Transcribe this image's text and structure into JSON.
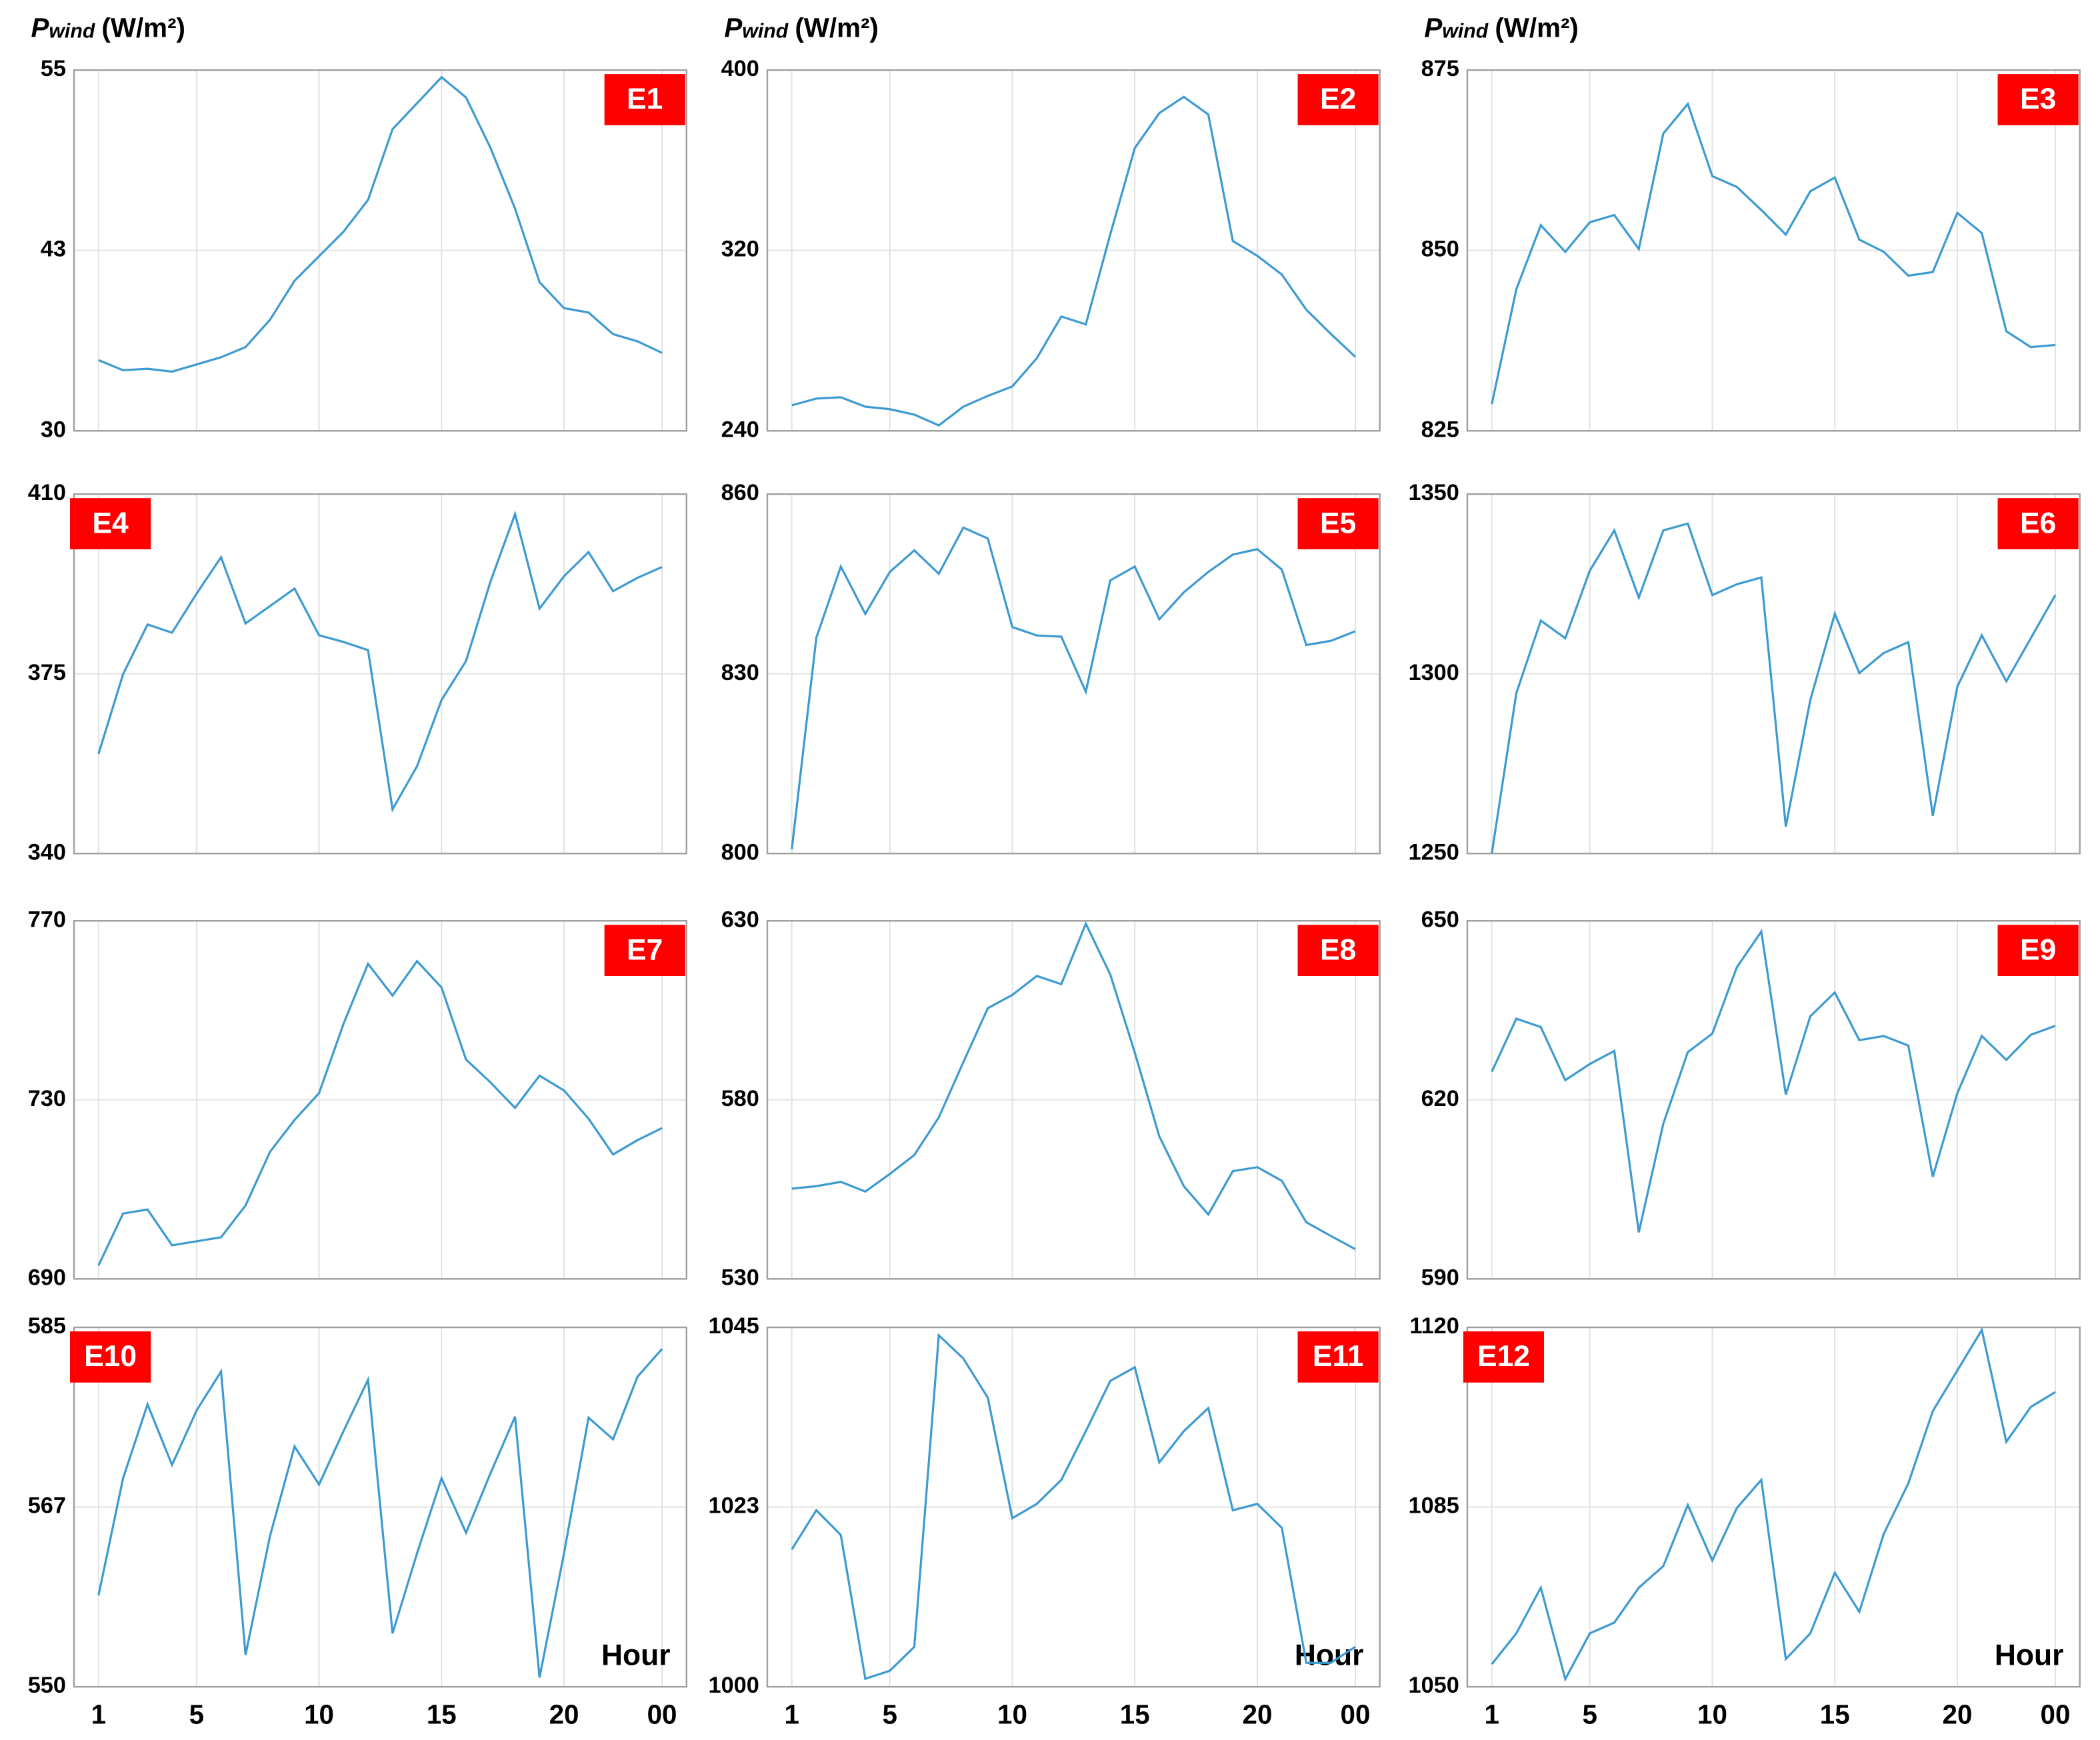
{
  "chart_data": [
    {
      "type": "line",
      "label": "E1",
      "label_corner": "upper right",
      "ylabel": {
        "symbol": "P",
        "subscript": "wind",
        "unit": "(W/m²)"
      },
      "xtick_labels": false,
      "grid": true,
      "color": "#3d9ad1",
      "x": [
        1,
        2,
        3,
        4,
        5,
        6,
        7,
        8,
        9,
        10,
        11,
        12,
        13,
        14,
        15,
        16,
        17,
        18,
        19,
        20,
        21,
        22,
        23,
        24
      ],
      "values": [
        34.9,
        34.2,
        34.3,
        34.1,
        34.6,
        35.1,
        35.8,
        37.7,
        40.4,
        42.1,
        43.8,
        46.0,
        50.9,
        52.7,
        54.5,
        53.1,
        49.6,
        45.4,
        40.3,
        38.5,
        38.2,
        36.7,
        36.2,
        35.4
      ],
      "xlim": [
        0,
        25
      ],
      "xticks": [
        1,
        5,
        10,
        15,
        20,
        {
          "value": 24,
          "label": "00"
        }
      ],
      "ylim": [
        30,
        55
      ],
      "yticks": [
        30,
        {
          "value": 42.5,
          "label": "43"
        },
        55
      ]
    },
    {
      "type": "line",
      "label": "E2",
      "label_corner": "upper right",
      "ylabel": {
        "symbol": "P",
        "subscript": "wind",
        "unit": "(W/m²)"
      },
      "xtick_labels": false,
      "grid": true,
      "color": "#3d9ad1",
      "x": [
        1,
        2,
        3,
        4,
        5,
        6,
        7,
        8,
        9,
        10,
        11,
        12,
        13,
        14,
        15,
        16,
        17,
        18,
        19,
        20,
        21,
        22,
        23,
        24
      ],
      "values": [
        251.3,
        254.3,
        254.9,
        250.7,
        249.6,
        247.2,
        242.4,
        250.7,
        255.5,
        259.7,
        272.2,
        290.7,
        287.2,
        327.2,
        365.4,
        380.9,
        388.1,
        380.3,
        324.2,
        317.6,
        309.3,
        293.7,
        283.0,
        272.8
      ],
      "xlim": [
        0,
        25
      ],
      "xticks": [
        1,
        5,
        10,
        15,
        20,
        {
          "value": 24,
          "label": "00"
        }
      ],
      "ylim": [
        240,
        400
      ],
      "yticks": [
        240,
        320,
        400
      ]
    },
    {
      "type": "line",
      "label": "E3",
      "label_corner": "upper right",
      "ylabel": {
        "symbol": "P",
        "subscript": "wind",
        "unit": "(W/m²)"
      },
      "xtick_labels": false,
      "grid": true,
      "color": "#3d9ad1",
      "x": [
        1,
        2,
        3,
        4,
        5,
        6,
        7,
        8,
        9,
        10,
        11,
        12,
        13,
        14,
        15,
        16,
        17,
        18,
        19,
        20,
        21,
        22,
        23,
        24
      ],
      "values": [
        828.7,
        844.6,
        853.5,
        849.8,
        853.9,
        854.9,
        850.2,
        866.2,
        870.3,
        860.3,
        858.8,
        855.6,
        852.2,
        858.2,
        860.1,
        851.5,
        849.8,
        846.5,
        847.0,
        855.2,
        852.4,
        838.8,
        836.6,
        836.9
      ],
      "xlim": [
        0,
        25
      ],
      "xticks": [
        1,
        5,
        10,
        15,
        20,
        {
          "value": 24,
          "label": "00"
        }
      ],
      "ylim": [
        825,
        875
      ],
      "yticks": [
        825,
        850,
        875
      ]
    },
    {
      "type": "line",
      "label": "E4",
      "label_corner": "upper left",
      "xtick_labels": false,
      "grid": true,
      "color": "#3d9ad1",
      "x": [
        1,
        2,
        3,
        4,
        5,
        6,
        7,
        8,
        9,
        10,
        11,
        12,
        13,
        14,
        15,
        16,
        17,
        18,
        19,
        20,
        21,
        22,
        23,
        24
      ],
      "values": [
        359.4,
        374.9,
        384.6,
        383.0,
        390.6,
        397.7,
        384.8,
        388.2,
        391.6,
        382.5,
        381.2,
        379.6,
        348.6,
        357.0,
        369.9,
        377.5,
        393.0,
        406.1,
        387.7,
        394.0,
        398.7,
        391.1,
        393.7,
        395.8
      ],
      "xlim": [
        0,
        25
      ],
      "xticks": [
        1,
        5,
        10,
        15,
        20,
        {
          "value": 24,
          "label": "00"
        }
      ],
      "ylim": [
        340,
        410
      ],
      "yticks": [
        340,
        375,
        410
      ]
    },
    {
      "type": "line",
      "label": "E5",
      "label_corner": "upper right",
      "xtick_labels": false,
      "grid": true,
      "color": "#3d9ad1",
      "x": [
        1,
        2,
        3,
        4,
        5,
        6,
        7,
        8,
        9,
        10,
        11,
        12,
        13,
        14,
        15,
        16,
        17,
        18,
        19,
        20,
        21,
        22,
        23,
        24
      ],
      "values": [
        800.7,
        836.0,
        847.9,
        840.0,
        847.0,
        850.6,
        846.7,
        854.4,
        852.6,
        837.8,
        836.4,
        836.2,
        827.0,
        845.6,
        847.9,
        839.1,
        843.6,
        847.0,
        849.9,
        850.8,
        847.4,
        834.8,
        835.5,
        837.1
      ],
      "xlim": [
        0,
        25
      ],
      "xticks": [
        1,
        5,
        10,
        15,
        20,
        {
          "value": 24,
          "label": "00"
        }
      ],
      "ylim": [
        800,
        860
      ],
      "yticks": [
        800,
        830,
        860
      ]
    },
    {
      "type": "line",
      "label": "E6",
      "label_corner": "upper right",
      "xtick_labels": false,
      "grid": true,
      "color": "#3d9ad1",
      "x": [
        1,
        2,
        3,
        4,
        5,
        6,
        7,
        8,
        9,
        10,
        11,
        12,
        13,
        14,
        15,
        16,
        17,
        18,
        19,
        20,
        21,
        22,
        23,
        24
      ],
      "values": [
        1250.0,
        1294.6,
        1314.8,
        1309.9,
        1328.7,
        1339.9,
        1321.2,
        1339.9,
        1341.8,
        1321.9,
        1324.9,
        1326.8,
        1257.5,
        1292.7,
        1316.7,
        1300.2,
        1305.8,
        1308.8,
        1260.5,
        1296.4,
        1310.7,
        1297.9,
        1309.9,
        1321.9
      ],
      "xlim": [
        0,
        25
      ],
      "xticks": [
        1,
        5,
        10,
        15,
        20,
        {
          "value": 24,
          "label": "00"
        }
      ],
      "ylim": [
        1250,
        1350
      ],
      "yticks": [
        1250,
        1300,
        1350
      ]
    },
    {
      "type": "line",
      "label": "E7",
      "label_corner": "upper right",
      "xtick_labels": false,
      "grid": true,
      "color": "#3d9ad1",
      "x": [
        1,
        2,
        3,
        4,
        5,
        6,
        7,
        8,
        9,
        10,
        11,
        12,
        13,
        14,
        15,
        16,
        17,
        18,
        19,
        20,
        21,
        22,
        23,
        24
      ],
      "values": [
        693.0,
        704.6,
        705.5,
        697.5,
        698.4,
        699.3,
        706.4,
        718.4,
        725.5,
        731.5,
        747.0,
        760.4,
        753.3,
        761.0,
        755.1,
        739.0,
        733.9,
        728.2,
        735.4,
        732.1,
        725.8,
        717.8,
        721.0,
        723.7
      ],
      "xlim": [
        0,
        25
      ],
      "xticks": [
        1,
        5,
        10,
        15,
        20,
        {
          "value": 24,
          "label": "00"
        }
      ],
      "ylim": [
        690,
        770
      ],
      "yticks": [
        690,
        730,
        770
      ]
    },
    {
      "type": "line",
      "label": "E8",
      "label_corner": "upper right",
      "xtick_labels": false,
      "grid": true,
      "color": "#3d9ad1",
      "x": [
        1,
        2,
        3,
        4,
        5,
        6,
        7,
        8,
        9,
        10,
        11,
        12,
        13,
        14,
        15,
        16,
        17,
        18,
        19,
        20,
        21,
        22,
        23,
        24
      ],
      "values": [
        555.2,
        555.9,
        557.1,
        554.4,
        559.3,
        564.6,
        575.1,
        590.5,
        605.6,
        609.3,
        614.6,
        612.3,
        629.2,
        615.0,
        593.2,
        569.8,
        555.9,
        548.0,
        560.1,
        561.2,
        557.4,
        545.8,
        542.0,
        538.3
      ],
      "xlim": [
        0,
        25
      ],
      "xticks": [
        1,
        5,
        10,
        15,
        20,
        {
          "value": 24,
          "label": "00"
        }
      ],
      "ylim": [
        530,
        630
      ],
      "yticks": [
        530,
        580,
        630
      ]
    },
    {
      "type": "line",
      "label": "E9",
      "label_corner": "upper right",
      "xtick_labels": false,
      "grid": true,
      "color": "#3d9ad1",
      "x": [
        1,
        2,
        3,
        4,
        5,
        6,
        7,
        8,
        9,
        10,
        11,
        12,
        13,
        14,
        15,
        16,
        17,
        18,
        19,
        20,
        21,
        22,
        23,
        24
      ],
      "values": [
        624.7,
        633.6,
        632.2,
        623.3,
        626.0,
        628.2,
        597.8,
        616.0,
        628.0,
        631.1,
        642.2,
        648.2,
        620.9,
        634.0,
        638.0,
        630.0,
        630.7,
        629.1,
        607.1,
        621.1,
        630.7,
        626.7,
        630.9,
        632.4
      ],
      "xlim": [
        0,
        25
      ],
      "xticks": [
        1,
        5,
        10,
        15,
        20,
        {
          "value": 24,
          "label": "00"
        }
      ],
      "ylim": [
        590,
        650
      ],
      "yticks": [
        590,
        620,
        650
      ]
    },
    {
      "type": "line",
      "label": "E10",
      "label_corner": "upper left",
      "xlabel": "Hour",
      "xtick_labels": true,
      "grid": true,
      "color": "#3d9ad1",
      "x": [
        1,
        2,
        3,
        4,
        5,
        6,
        7,
        8,
        9,
        10,
        11,
        12,
        13,
        14,
        15,
        16,
        17,
        18,
        19,
        20,
        21,
        22,
        23,
        24
      ],
      "values": [
        558.9,
        570.3,
        577.5,
        571.6,
        576.9,
        580.7,
        553.1,
        564.7,
        573.4,
        569.7,
        574.9,
        579.9,
        555.2,
        563.0,
        570.3,
        565.0,
        570.8,
        576.3,
        550.9,
        563.0,
        576.2,
        574.1,
        580.2,
        582.9
      ],
      "xlim": [
        0,
        25
      ],
      "xticks": [
        1,
        5,
        10,
        15,
        20,
        {
          "value": 24,
          "label": "00"
        }
      ],
      "ylim": [
        550,
        585
      ],
      "yticks": [
        550,
        {
          "value": 567.5,
          "label": "567"
        },
        585
      ]
    },
    {
      "type": "line",
      "label": "E11",
      "label_corner": "upper right",
      "xlabel": "Hour",
      "xtick_labels": true,
      "grid": true,
      "color": "#3d9ad1",
      "x": [
        1,
        2,
        3,
        4,
        5,
        6,
        7,
        8,
        9,
        10,
        11,
        12,
        13,
        14,
        15,
        16,
        17,
        18,
        19,
        20,
        21,
        22,
        23,
        24
      ],
      "values": [
        1017.2,
        1022.1,
        1019.0,
        1001.0,
        1002.0,
        1005.0,
        1044.0,
        1041.1,
        1036.2,
        1021.1,
        1022.9,
        1025.9,
        1032.0,
        1038.3,
        1040.0,
        1028.1,
        1032.0,
        1034.9,
        1022.1,
        1022.9,
        1019.9,
        1003.0,
        1003.0,
        1005.0
      ],
      "xlim": [
        0,
        25
      ],
      "xticks": [
        1,
        5,
        10,
        15,
        20,
        {
          "value": 24,
          "label": "00"
        }
      ],
      "ylim": [
        1000,
        1045
      ],
      "yticks": [
        1000,
        {
          "value": 1022.5,
          "label": "1023"
        },
        1045
      ]
    },
    {
      "type": "line",
      "label": "E12",
      "label_corner": "upper left",
      "xlabel": "Hour",
      "xtick_labels": true,
      "grid": true,
      "color": "#3d9ad1",
      "x": [
        1,
        2,
        3,
        4,
        5,
        6,
        7,
        8,
        9,
        10,
        11,
        12,
        13,
        14,
        15,
        16,
        17,
        18,
        19,
        20,
        21,
        22,
        23,
        24
      ],
      "values": [
        1054.4,
        1060.4,
        1069.3,
        1051.5,
        1060.4,
        1062.5,
        1069.3,
        1073.5,
        1085.4,
        1074.6,
        1084.8,
        1090.3,
        1055.4,
        1060.4,
        1072.2,
        1064.6,
        1079.8,
        1089.6,
        1103.7,
        1111.6,
        1119.5,
        1097.7,
        1104.5,
        1107.4
      ],
      "xlim": [
        0,
        25
      ],
      "xticks": [
        1,
        5,
        10,
        15,
        20,
        {
          "value": 24,
          "label": "00"
        }
      ],
      "ylim": [
        1050,
        1120
      ],
      "yticks": [
        1050,
        1085,
        1120
      ]
    }
  ]
}
